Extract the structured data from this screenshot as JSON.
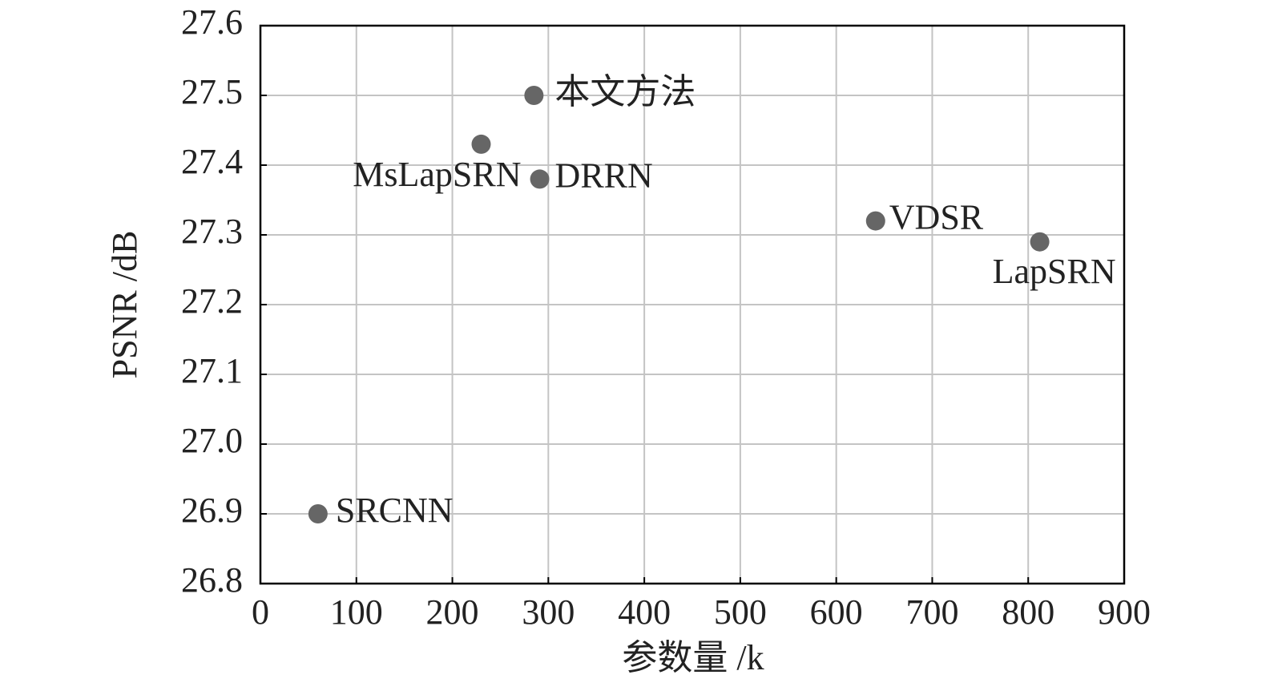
{
  "chart_data": {
    "type": "scatter",
    "xlabel": "参数量 /k",
    "ylabel": "PSNR /dB",
    "labels": [
      "SRCNN",
      "MsLapSRN",
      "本文方法",
      "DRRN",
      "VDSR",
      "LapSRN"
    ],
    "x": [
      60,
      230,
      285,
      291,
      641,
      812
    ],
    "values": [
      26.9,
      27.43,
      27.5,
      27.38,
      27.32,
      27.29
    ],
    "color": "#666666",
    "xlim": [
      0,
      900
    ],
    "xticks": [
      0,
      100,
      200,
      300,
      400,
      500,
      600,
      700,
      800,
      900
    ],
    "ylim": [
      26.8,
      27.6
    ],
    "yticks": [
      26.8,
      26.9,
      {
        "value": 27,
        "label": "27.0"
      },
      27.1,
      27.2,
      27.3,
      27.4,
      27.5,
      27.6
    ],
    "grid": true
  }
}
